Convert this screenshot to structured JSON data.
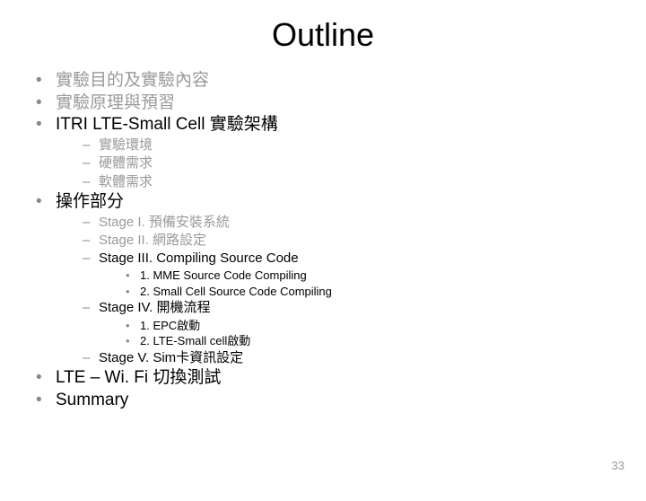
{
  "title": "Outline",
  "page_number": "33",
  "colors": {
    "title": "#000000",
    "bullet": "#888888",
    "text_gray": "#9a9a9a",
    "text_black": "#000000",
    "background": "#ffffff"
  },
  "typography": {
    "title_fontsize": 36,
    "l1_fontsize": 19,
    "l2_fontsize": 15,
    "l3_fontsize": 13,
    "pagenum_fontsize": 13
  },
  "items": {
    "b1": "實驗目的及實驗內容",
    "b2": "實驗原理與預習",
    "b3": "ITRI LTE-Small Cell 實驗架構",
    "b3_1": "實驗環境",
    "b3_2": "硬體需求",
    "b3_3": "軟體需求",
    "b4": "操作部分",
    "b4_1": "Stage I. 預備安裝系統",
    "b4_2": "Stage II. 網路設定",
    "b4_3": "Stage III. Compiling Source Code",
    "b4_3_1": "1. MME Source Code Compiling",
    "b4_3_2": "2. Small Cell Source Code Compiling",
    "b4_4": "Stage IV. 開機流程",
    "b4_4_1": "1. EPC啟動",
    "b4_4_2": "2. LTE-Small cell啟動",
    "b4_5": "Stage V. Sim卡資訊設定",
    "b5": "LTE – Wi. Fi 切換測試",
    "b6": "Summary"
  }
}
